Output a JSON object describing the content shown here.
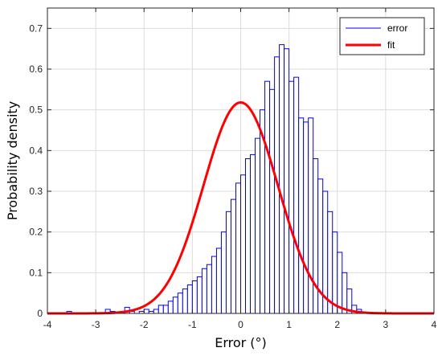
{
  "chart_data": {
    "type": "bar",
    "title": "",
    "xlabel": "Error (°)",
    "ylabel": "Probability density",
    "xlim": [
      -4,
      4
    ],
    "ylim": [
      0,
      0.75
    ],
    "xticks": [
      -4,
      -3,
      -2,
      -1,
      0,
      1,
      2,
      3,
      4
    ],
    "xtick_labels": [
      "-4",
      "-3",
      "-2",
      "-1",
      "0",
      "1",
      "2",
      "3",
      "4"
    ],
    "yticks": [
      0,
      0.1,
      0.2,
      0.3,
      0.4,
      0.5,
      0.6,
      0.7
    ],
    "ytick_labels": [
      "0",
      "0.1",
      "0.2",
      "0.3",
      "0.4",
      "0.5",
      "0.6",
      "0.7"
    ],
    "grid": true,
    "legend_position": "top-right",
    "colors": {
      "histogram": "#0000ff",
      "fit": "#ff0000",
      "grid": "#dcdcdc"
    },
    "series": [
      {
        "name": "error",
        "kind": "histogram",
        "bin_width": 0.1,
        "bin_start": -3.6,
        "bin_end": 2.6,
        "values": [
          0.005,
          0,
          0,
          0,
          0,
          0,
          0,
          0,
          0.01,
          0.005,
          0,
          0.005,
          0.015,
          0.005,
          0,
          0.005,
          0.01,
          0.005,
          0.01,
          0.02,
          0.02,
          0.03,
          0.04,
          0.05,
          0.06,
          0.07,
          0.08,
          0.09,
          0.11,
          0.12,
          0.14,
          0.16,
          0.2,
          0.25,
          0.28,
          0.32,
          0.34,
          0.38,
          0.39,
          0.43,
          0.5,
          0.57,
          0.55,
          0.63,
          0.66,
          0.65,
          0.57,
          0.58,
          0.48,
          0.47,
          0.48,
          0.38,
          0.33,
          0.3,
          0.25,
          0.2,
          0.15,
          0.1,
          0.06,
          0.02,
          0.01
        ]
      },
      {
        "name": "fit",
        "kind": "normal-pdf",
        "mean": 0,
        "std": 0.77
      }
    ]
  }
}
